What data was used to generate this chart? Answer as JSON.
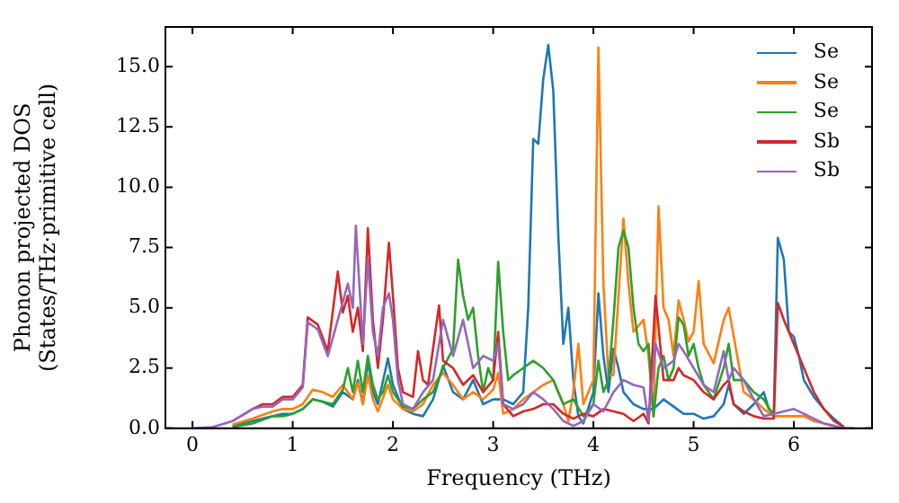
{
  "chart_data": {
    "type": "line",
    "xlabel": "Frequency (THz)",
    "ylabel": "Phonon projected DOS\n(States/THz·primitive cell)",
    "xlim": [
      -0.27,
      6.78
    ],
    "ylim": [
      0,
      16.65
    ],
    "xticks": [
      0,
      1,
      2,
      3,
      4,
      5,
      6
    ],
    "yticks": [
      {
        "value": 0,
        "label": "0.0"
      },
      {
        "value": 2.5,
        "label": "2.5"
      },
      {
        "value": 5,
        "label": "5.0"
      },
      {
        "value": 7.5,
        "label": "7.5"
      },
      {
        "value": 10,
        "label": "10.0"
      },
      {
        "value": 12.5,
        "label": "12.5"
      },
      {
        "value": 15,
        "label": "15.0"
      }
    ],
    "grid": false,
    "legend": "top right",
    "series": [
      {
        "name": "Se",
        "color": "#1f77b4",
        "x": [
          0.4,
          0.6,
          0.8,
          0.9,
          1.0,
          1.1,
          1.2,
          1.3,
          1.4,
          1.5,
          1.6,
          1.65,
          1.7,
          1.75,
          1.8,
          1.85,
          1.95,
          2.0,
          2.1,
          2.2,
          2.3,
          2.4,
          2.5,
          2.6,
          2.7,
          2.8,
          2.9,
          3.0,
          3.1,
          3.2,
          3.3,
          3.35,
          3.4,
          3.45,
          3.5,
          3.55,
          3.6,
          3.65,
          3.7,
          3.75,
          3.8,
          3.85,
          3.9,
          4.0,
          4.05,
          4.1,
          4.15,
          4.2,
          4.25,
          4.3,
          4.4,
          4.5,
          4.6,
          4.7,
          4.8,
          4.9,
          5.0,
          5.1,
          5.2,
          5.3,
          5.35,
          5.4,
          5.5,
          5.6,
          5.7,
          5.75,
          5.8,
          5.84,
          5.9,
          5.95,
          6.0,
          6.05,
          6.1,
          6.2,
          6.3,
          6.4,
          6.5
        ],
        "values": [
          0.1,
          0.3,
          0.5,
          0.6,
          0.6,
          0.8,
          1.2,
          1.1,
          0.9,
          1.5,
          1.2,
          2.0,
          1.0,
          2.8,
          1.5,
          1.0,
          2.9,
          1.8,
          0.8,
          0.6,
          0.5,
          1.2,
          2.6,
          1.5,
          1.2,
          2.0,
          1.0,
          1.2,
          1.2,
          1.0,
          1.5,
          5.0,
          12.0,
          11.8,
          14.5,
          15.9,
          14.0,
          8.0,
          3.5,
          5.0,
          2.0,
          0.5,
          0.2,
          1.5,
          5.6,
          3.0,
          1.5,
          3.3,
          2.5,
          1.5,
          1.0,
          0.8,
          0.8,
          1.2,
          0.9,
          0.6,
          0.6,
          0.4,
          0.5,
          1.0,
          1.8,
          1.0,
          0.6,
          1.0,
          1.5,
          0.8,
          0.6,
          7.9,
          7.0,
          4.0,
          3.8,
          3.0,
          2.0,
          1.3,
          0.8,
          0.4,
          0.05
        ]
      },
      {
        "name": "Se",
        "color": "#ff7f0e",
        "x": [
          0.4,
          0.6,
          0.8,
          0.9,
          1.0,
          1.1,
          1.2,
          1.3,
          1.4,
          1.5,
          1.6,
          1.65,
          1.7,
          1.75,
          1.8,
          1.85,
          1.95,
          2.0,
          2.1,
          2.2,
          2.3,
          2.4,
          2.5,
          2.6,
          2.7,
          2.8,
          2.9,
          3.0,
          3.05,
          3.1,
          3.2,
          3.3,
          3.4,
          3.5,
          3.6,
          3.7,
          3.75,
          3.8,
          3.85,
          3.9,
          4.0,
          4.05,
          4.1,
          4.15,
          4.2,
          4.3,
          4.35,
          4.4,
          4.5,
          4.55,
          4.6,
          4.65,
          4.7,
          4.75,
          4.8,
          4.85,
          4.9,
          4.95,
          5.0,
          5.05,
          5.1,
          5.2,
          5.3,
          5.35,
          5.4,
          5.5,
          5.6,
          5.7,
          5.8,
          5.9,
          6.0,
          6.1,
          6.2,
          6.3,
          6.4
        ],
        "values": [
          0.15,
          0.4,
          0.7,
          0.8,
          0.8,
          1.0,
          1.6,
          1.5,
          1.3,
          1.8,
          1.2,
          1.9,
          1.0,
          2.2,
          1.2,
          0.7,
          1.8,
          1.2,
          0.8,
          0.7,
          1.0,
          1.8,
          2.3,
          1.8,
          1.2,
          1.5,
          1.2,
          1.6,
          2.3,
          0.6,
          0.8,
          1.2,
          1.5,
          1.8,
          2.0,
          1.0,
          0.3,
          1.5,
          3.5,
          1.0,
          2.0,
          15.8,
          6.0,
          2.2,
          2.2,
          8.7,
          6.0,
          4.0,
          4.5,
          3.0,
          0.5,
          9.2,
          5.0,
          4.5,
          3.0,
          5.3,
          4.5,
          3.6,
          4.0,
          6.1,
          3.5,
          2.7,
          4.5,
          5.0,
          3.8,
          1.5,
          1.2,
          0.8,
          0.5,
          0.5,
          0.5,
          0.5,
          0.3,
          0.2,
          0.1
        ]
      },
      {
        "name": "Se",
        "color": "#2ca02c",
        "x": [
          0.4,
          0.6,
          0.8,
          0.9,
          1.0,
          1.1,
          1.2,
          1.3,
          1.4,
          1.5,
          1.55,
          1.6,
          1.65,
          1.7,
          1.75,
          1.8,
          1.85,
          1.9,
          1.95,
          2.0,
          2.1,
          2.2,
          2.3,
          2.4,
          2.5,
          2.6,
          2.65,
          2.7,
          2.75,
          2.8,
          2.85,
          2.9,
          2.95,
          3.0,
          3.05,
          3.1,
          3.15,
          3.2,
          3.3,
          3.4,
          3.5,
          3.6,
          3.7,
          3.8,
          3.9,
          4.0,
          4.05,
          4.1,
          4.15,
          4.2,
          4.25,
          4.3,
          4.35,
          4.4,
          4.45,
          4.5,
          4.55,
          4.6,
          4.65,
          4.7,
          4.75,
          4.8,
          4.85,
          4.9,
          4.95,
          5.0,
          5.05,
          5.1,
          5.2,
          5.3,
          5.35,
          5.4,
          5.5,
          5.6,
          5.7,
          5.8
        ],
        "values": [
          0.05,
          0.2,
          0.5,
          0.5,
          0.6,
          0.8,
          1.2,
          1.1,
          1.0,
          1.6,
          2.5,
          1.5,
          2.8,
          1.5,
          3.0,
          1.8,
          1.2,
          1.5,
          2.2,
          1.5,
          0.9,
          0.8,
          1.2,
          1.5,
          2.5,
          3.3,
          7.0,
          5.5,
          4.5,
          5.0,
          3.0,
          1.5,
          2.5,
          2.0,
          6.9,
          4.0,
          2.0,
          2.2,
          2.5,
          2.8,
          2.5,
          2.0,
          1.0,
          1.2,
          0.5,
          1.0,
          2.8,
          1.5,
          2.0,
          4.5,
          7.5,
          8.2,
          7.5,
          5.0,
          3.5,
          3.2,
          3.5,
          0.5,
          2.5,
          3.0,
          2.0,
          2.5,
          4.6,
          4.3,
          3.0,
          3.5,
          2.5,
          1.8,
          1.2,
          2.5,
          3.5,
          2.0,
          2.0,
          1.5,
          1.2,
          0.5
        ]
      },
      {
        "name": "Sb",
        "color": "#d62728",
        "x": [
          0.4,
          0.6,
          0.7,
          0.8,
          0.9,
          1.0,
          1.1,
          1.15,
          1.25,
          1.35,
          1.45,
          1.5,
          1.55,
          1.6,
          1.65,
          1.7,
          1.75,
          1.8,
          1.85,
          1.9,
          1.96,
          2.0,
          2.05,
          2.1,
          2.2,
          2.25,
          2.3,
          2.35,
          2.46,
          2.5,
          2.6,
          2.7,
          2.8,
          2.9,
          3.0,
          3.05,
          3.1,
          3.2,
          3.3,
          3.4,
          3.5,
          3.6,
          3.7,
          3.8,
          3.9,
          4.0,
          4.1,
          4.2,
          4.3,
          4.4,
          4.5,
          4.55,
          4.62,
          4.7,
          4.8,
          4.85,
          4.9,
          5.0,
          5.1,
          5.2,
          5.3,
          5.35,
          5.4,
          5.5,
          5.6,
          5.7,
          5.8,
          5.84,
          5.9,
          6.0,
          6.1,
          6.2,
          6.3,
          6.4,
          6.5
        ],
        "values": [
          0.3,
          0.8,
          1.0,
          1.0,
          1.3,
          1.3,
          1.8,
          4.6,
          4.3,
          3.2,
          6.5,
          4.8,
          5.5,
          4.0,
          5.0,
          3.2,
          8.3,
          4.5,
          2.5,
          4.5,
          7.7,
          5.5,
          2.5,
          1.5,
          1.3,
          3.2,
          2.0,
          1.8,
          5.1,
          2.8,
          2.5,
          1.8,
          2.2,
          1.5,
          2.0,
          4.0,
          1.0,
          0.5,
          0.7,
          0.8,
          1.0,
          1.0,
          0.6,
          0.4,
          0.6,
          0.5,
          0.8,
          0.7,
          0.6,
          0.3,
          0.6,
          0.2,
          5.5,
          2.0,
          2.0,
          2.5,
          2.2,
          2.0,
          1.5,
          1.2,
          1.8,
          2.0,
          1.0,
          0.7,
          0.5,
          0.4,
          0.4,
          5.2,
          4.5,
          3.5,
          2.5,
          1.5,
          0.8,
          0.3,
          0.05
        ]
      },
      {
        "name": "Sb",
        "color": "#9467bd",
        "x": [
          0,
          0.2,
          0.4,
          0.6,
          0.7,
          0.8,
          0.9,
          1.0,
          1.1,
          1.15,
          1.25,
          1.35,
          1.45,
          1.55,
          1.6,
          1.63,
          1.7,
          1.75,
          1.8,
          1.85,
          1.9,
          1.96,
          2.0,
          2.05,
          2.1,
          2.2,
          2.3,
          2.4,
          2.5,
          2.6,
          2.7,
          2.8,
          2.9,
          3.0,
          3.05,
          3.1,
          3.2,
          3.3,
          3.4,
          3.5,
          3.6,
          3.7,
          3.8,
          3.9,
          4.0,
          4.1,
          4.2,
          4.3,
          4.4,
          4.5,
          4.55,
          4.62,
          4.7,
          4.8,
          4.85,
          4.9,
          5.0,
          5.1,
          5.2,
          5.3,
          5.35,
          5.4,
          5.5,
          5.6,
          5.7,
          5.8,
          5.9,
          6.0,
          6.1,
          6.2,
          6.3,
          6.4,
          6.5,
          6.6
        ],
        "values": [
          0,
          0.05,
          0.3,
          0.8,
          0.9,
          0.9,
          1.2,
          1.2,
          1.7,
          4.4,
          4.1,
          3.0,
          4.5,
          6.0,
          5.0,
          8.4,
          3.5,
          7.0,
          4.0,
          3.0,
          5.0,
          5.6,
          4.5,
          2.0,
          1.0,
          0.8,
          1.5,
          2.0,
          4.5,
          3.0,
          4.5,
          2.5,
          3.0,
          2.8,
          3.5,
          1.0,
          0.8,
          1.0,
          1.5,
          1.2,
          0.8,
          0.3,
          0.1,
          0.3,
          1.0,
          0.7,
          1.5,
          2.0,
          1.8,
          1.7,
          0.3,
          3.5,
          2.5,
          2.8,
          3.5,
          3.2,
          2.5,
          1.8,
          1.5,
          3.2,
          2.0,
          2.5,
          2.0,
          1.2,
          0.5,
          0.6,
          0.7,
          0.8,
          0.6,
          0.4,
          0.2,
          0.1,
          0,
          0
        ]
      }
    ]
  }
}
